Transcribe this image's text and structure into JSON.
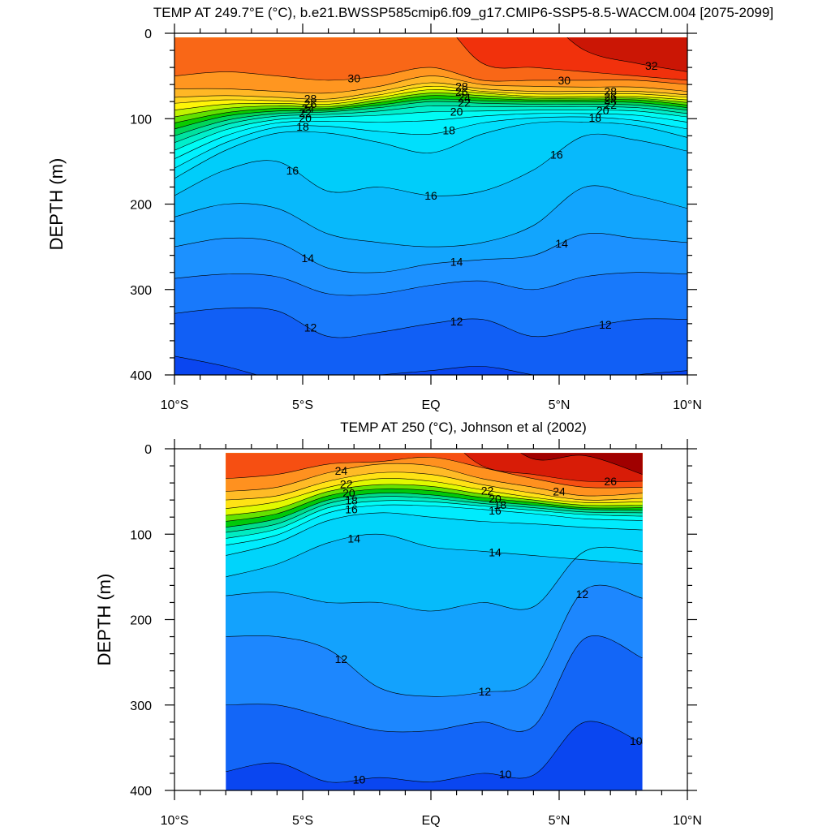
{
  "chart_data": [
    {
      "type": "heatmap",
      "title": "TEMP AT 249.7°E (°C), b.e21.BWSSP585cmip6.f09_g17.CMIP6-SSP5-8.5-WACCM.004 [2075-2099]",
      "ylabel": "DEPTH (m)",
      "xlabel": "",
      "xlim": [
        -10,
        10
      ],
      "ylim": [
        400,
        0
      ],
      "y_reversed": true,
      "x_ticks": [
        -10,
        -5,
        0,
        5,
        10
      ],
      "x_tick_labels": [
        "10°S",
        "5°S",
        "EQ",
        "5°N",
        "10°N"
      ],
      "y_ticks": [
        0,
        100,
        200,
        300,
        400
      ],
      "y_tick_labels": [
        "0",
        "100",
        "200",
        "300",
        "400"
      ],
      "data_xrange": [
        -10,
        10
      ],
      "data_yrange": [
        5,
        400
      ],
      "contour_levels": [
        10,
        11,
        12,
        13,
        14,
        15,
        16,
        17,
        18,
        19,
        20,
        21,
        22,
        23,
        24,
        25,
        26,
        27,
        28,
        29,
        30,
        31,
        32,
        33
      ],
      "x": [
        -10,
        -8,
        -6,
        -4,
        -2,
        0,
        2,
        4,
        6,
        8,
        10
      ],
      "isotherm_depths": [
        {
          "temp": 32,
          "depths": [
            null,
            null,
            null,
            null,
            null,
            null,
            null,
            null,
            20,
            35,
            45
          ]
        },
        {
          "temp": 31,
          "depths": [
            null,
            null,
            null,
            null,
            null,
            null,
            35,
            40,
            45,
            50,
            55
          ]
        },
        {
          "temp": 30,
          "depths": [
            50,
            45,
            50,
            55,
            50,
            40,
            55,
            55,
            55,
            55,
            60
          ]
        },
        {
          "temp": 29,
          "depths": [
            65,
            65,
            68,
            70,
            62,
            50,
            60,
            62,
            63,
            63,
            68
          ]
        },
        {
          "temp": 28,
          "depths": [
            75,
            73,
            75,
            77,
            68,
            58,
            65,
            68,
            68,
            68,
            72
          ]
        },
        {
          "temp": 27,
          "depths": [
            82,
            78,
            79,
            80,
            72,
            62,
            68,
            71,
            71,
            71,
            75
          ]
        },
        {
          "temp": 26,
          "depths": [
            90,
            83,
            82,
            83,
            75,
            66,
            70,
            74,
            74,
            74,
            78
          ]
        },
        {
          "temp": 25,
          "depths": [
            98,
            88,
            85,
            86,
            78,
            70,
            73,
            76,
            76,
            76,
            81
          ]
        },
        {
          "temp": 24,
          "depths": [
            105,
            93,
            88,
            88,
            81,
            73,
            76,
            78,
            78,
            78,
            84
          ]
        },
        {
          "temp": 23,
          "depths": [
            112,
            97,
            91,
            90,
            84,
            77,
            79,
            80,
            80,
            81,
            87
          ]
        },
        {
          "temp": 22,
          "depths": [
            120,
            102,
            94,
            92,
            87,
            80,
            82,
            83,
            83,
            84,
            90
          ]
        },
        {
          "temp": 21,
          "depths": [
            128,
            107,
            97,
            95,
            91,
            85,
            86,
            86,
            86,
            87,
            94
          ]
        },
        {
          "temp": 20,
          "depths": [
            137,
            113,
            101,
            98,
            96,
            92,
            91,
            90,
            90,
            91,
            98
          ]
        },
        {
          "temp": 19,
          "depths": [
            147,
            120,
            105,
            103,
            104,
            102,
            97,
            94,
            94,
            96,
            104
          ]
        },
        {
          "temp": 18,
          "depths": [
            158,
            128,
            110,
            109,
            115,
            118,
            105,
            99,
            98,
            102,
            112
          ]
        },
        {
          "temp": 17,
          "depths": [
            170,
            137,
            117,
            117,
            128,
            140,
            118,
            105,
            104,
            108,
            122
          ]
        },
        {
          "temp": 16,
          "depths": [
            190,
            160,
            150,
            185,
            180,
            190,
            185,
            160,
            120,
            125,
            138
          ]
        },
        {
          "temp": 15,
          "depths": [
            215,
            200,
            205,
            235,
            245,
            250,
            245,
            225,
            180,
            190,
            205
          ]
        },
        {
          "temp": 14,
          "depths": [
            250,
            240,
            245,
            275,
            280,
            270,
            265,
            260,
            235,
            240,
            245
          ]
        },
        {
          "temp": 13,
          "depths": [
            287,
            282,
            285,
            305,
            305,
            295,
            290,
            300,
            285,
            280,
            282
          ]
        },
        {
          "temp": 12,
          "depths": [
            328,
            322,
            325,
            355,
            350,
            340,
            335,
            355,
            345,
            335,
            335
          ]
        },
        {
          "temp": 11,
          "depths": [
            378,
            390,
            405,
            405,
            400,
            395,
            390,
            400,
            410,
            400,
            395
          ]
        }
      ],
      "contour_labels_shown": [
        "30",
        "32",
        "28",
        "26",
        "24",
        "22",
        "20",
        "18",
        "16",
        "14",
        "12"
      ]
    },
    {
      "type": "heatmap",
      "title": "TEMP AT 250 (°C), Johnson et al (2002)",
      "ylabel": "DEPTH (m)",
      "xlabel": "",
      "xlim": [
        -10,
        10
      ],
      "ylim": [
        400,
        0
      ],
      "y_reversed": true,
      "x_ticks": [
        -10,
        -5,
        0,
        5,
        10
      ],
      "x_tick_labels": [
        "10°S",
        "5°S",
        "EQ",
        "5°N",
        "10°N"
      ],
      "y_ticks": [
        0,
        100,
        200,
        300,
        400
      ],
      "y_tick_labels": [
        "0",
        "100",
        "200",
        "300",
        "400"
      ],
      "data_xrange": [
        -8,
        8.25
      ],
      "data_yrange": [
        5,
        400
      ],
      "contour_levels": [
        9,
        10,
        11,
        12,
        13,
        14,
        15,
        16,
        17,
        18,
        19,
        20,
        21,
        22,
        23,
        24,
        25,
        26,
        27
      ],
      "x": [
        -8,
        -6,
        -4,
        -2,
        0,
        2,
        4,
        6,
        8.25
      ],
      "isotherm_depths": [
        {
          "temp": 27,
          "depths": [
            null,
            null,
            null,
            null,
            null,
            null,
            12,
            8,
            30
          ]
        },
        {
          "temp": 26,
          "depths": [
            null,
            null,
            null,
            null,
            null,
            20,
            30,
            38,
            38
          ]
        },
        {
          "temp": 25,
          "depths": [
            35,
            30,
            18,
            15,
            10,
            22,
            35,
            45,
            45
          ]
        },
        {
          "temp": 24,
          "depths": [
            50,
            45,
            28,
            18,
            20,
            35,
            45,
            55,
            52
          ]
        },
        {
          "temp": 23,
          "depths": [
            60,
            55,
            38,
            28,
            30,
            42,
            52,
            60,
            58
          ]
        },
        {
          "temp": 22,
          "depths": [
            70,
            62,
            45,
            35,
            38,
            48,
            57,
            63,
            62
          ]
        },
        {
          "temp": 21,
          "depths": [
            78,
            70,
            50,
            42,
            44,
            53,
            60,
            66,
            66
          ]
        },
        {
          "temp": 20,
          "depths": [
            85,
            76,
            55,
            47,
            49,
            57,
            63,
            69,
            69
          ]
        },
        {
          "temp": 19,
          "depths": [
            92,
            82,
            60,
            52,
            54,
            61,
            66,
            71,
            72
          ]
        },
        {
          "temp": 18,
          "depths": [
            98,
            88,
            64,
            56,
            58,
            64,
            69,
            74,
            75
          ]
        },
        {
          "temp": 17,
          "depths": [
            105,
            94,
            69,
            61,
            62,
            67,
            72,
            77,
            79
          ]
        },
        {
          "temp": 16,
          "depths": [
            113,
            101,
            75,
            66,
            67,
            71,
            76,
            82,
            84
          ]
        },
        {
          "temp": 15,
          "depths": [
            125,
            110,
            84,
            75,
            80,
            85,
            88,
            92,
            95
          ]
        },
        {
          "temp": 14,
          "depths": [
            150,
            135,
            110,
            100,
            115,
            120,
            125,
            130,
            135
          ]
        },
        {
          "temp": 13,
          "depths": [
            172,
            168,
            180,
            180,
            190,
            180,
            185,
            120,
            120
          ]
        },
        {
          "temp": 12,
          "depths": [
            220,
            220,
            235,
            280,
            290,
            285,
            270,
            165,
            175
          ]
        },
        {
          "temp": 11,
          "depths": [
            300,
            300,
            315,
            330,
            330,
            320,
            325,
            222,
            245
          ]
        },
        {
          "temp": 10,
          "depths": [
            378,
            368,
            390,
            385,
            390,
            380,
            382,
            320,
            345
          ]
        }
      ],
      "contour_labels_shown": [
        "24",
        "22",
        "20",
        "18",
        "16",
        "14",
        "12",
        "10",
        "26"
      ]
    }
  ]
}
